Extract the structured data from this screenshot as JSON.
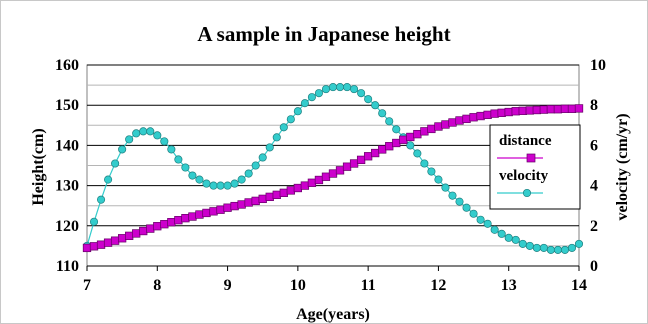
{
  "chart_data": {
    "type": "line",
    "title": "A sample in Japanese height",
    "xlabel": "Age(years)",
    "ylabel": "Height(cm)",
    "y2label": "velocity (cm/yr)",
    "xlim": [
      7,
      14
    ],
    "ylim": [
      110,
      160
    ],
    "y2lim": [
      0,
      10
    ],
    "x_ticks": [
      7,
      8,
      9,
      10,
      11,
      12,
      13,
      14
    ],
    "y_ticks": [
      110,
      120,
      130,
      140,
      150,
      160
    ],
    "y2_ticks": [
      0,
      2,
      4,
      6,
      8,
      10
    ],
    "grid": "horizontal",
    "legend_position": "right",
    "series": [
      {
        "name": "distance",
        "axis": "left",
        "color": "#cc00cc",
        "marker": "square",
        "x": [
          7.0,
          7.1,
          7.2,
          7.3,
          7.4,
          7.5,
          7.6,
          7.7,
          7.8,
          7.9,
          8.0,
          8.1,
          8.2,
          8.3,
          8.4,
          8.5,
          8.6,
          8.7,
          8.8,
          8.9,
          9.0,
          9.1,
          9.2,
          9.3,
          9.4,
          9.5,
          9.6,
          9.7,
          9.8,
          9.9,
          10.0,
          10.1,
          10.2,
          10.3,
          10.4,
          10.5,
          10.6,
          10.7,
          10.8,
          10.9,
          11.0,
          11.1,
          11.2,
          11.3,
          11.4,
          11.5,
          11.6,
          11.7,
          11.8,
          11.9,
          12.0,
          12.1,
          12.2,
          12.3,
          12.4,
          12.5,
          12.6,
          12.7,
          12.8,
          12.9,
          13.0,
          13.1,
          13.2,
          13.3,
          13.4,
          13.5,
          13.6,
          13.7,
          13.8,
          13.9,
          14.0
        ],
        "values": [
          114.5,
          114.9,
          115.3,
          115.8,
          116.3,
          116.9,
          117.5,
          118.1,
          118.7,
          119.3,
          119.9,
          120.4,
          120.9,
          121.4,
          121.9,
          122.3,
          122.8,
          123.2,
          123.6,
          124.0,
          124.5,
          124.9,
          125.3,
          125.8,
          126.2,
          126.7,
          127.2,
          127.7,
          128.2,
          128.8,
          129.4,
          130.0,
          130.7,
          131.4,
          132.2,
          133.0,
          133.8,
          134.7,
          135.5,
          136.4,
          137.3,
          138.1,
          139.0,
          139.8,
          140.6,
          141.4,
          142.1,
          142.8,
          143.5,
          144.1,
          144.7,
          145.2,
          145.7,
          146.2,
          146.6,
          147.0,
          147.3,
          147.6,
          147.9,
          148.1,
          148.3,
          148.5,
          148.6,
          148.7,
          148.8,
          148.9,
          149.0,
          149.0,
          149.1,
          149.1,
          149.2
        ]
      },
      {
        "name": "velocity",
        "axis": "right",
        "color": "#33cccc",
        "marker": "circle",
        "x": [
          7.0,
          7.1,
          7.2,
          7.3,
          7.4,
          7.5,
          7.6,
          7.7,
          7.8,
          7.9,
          8.0,
          8.1,
          8.2,
          8.3,
          8.4,
          8.5,
          8.6,
          8.7,
          8.8,
          8.9,
          9.0,
          9.1,
          9.2,
          9.3,
          9.4,
          9.5,
          9.6,
          9.7,
          9.8,
          9.9,
          10.0,
          10.1,
          10.2,
          10.3,
          10.4,
          10.5,
          10.6,
          10.7,
          10.8,
          10.9,
          11.0,
          11.1,
          11.2,
          11.3,
          11.4,
          11.5,
          11.6,
          11.7,
          11.8,
          11.9,
          12.0,
          12.1,
          12.2,
          12.3,
          12.4,
          12.5,
          12.6,
          12.7,
          12.8,
          12.9,
          13.0,
          13.1,
          13.2,
          13.3,
          13.4,
          13.5,
          13.6,
          13.7,
          13.8,
          13.9,
          14.0
        ],
        "values": [
          1.0,
          2.2,
          3.3,
          4.3,
          5.1,
          5.8,
          6.3,
          6.6,
          6.7,
          6.7,
          6.5,
          6.2,
          5.8,
          5.3,
          4.9,
          4.5,
          4.3,
          4.1,
          4.0,
          4.0,
          4.0,
          4.1,
          4.3,
          4.6,
          5.0,
          5.4,
          5.9,
          6.4,
          6.9,
          7.3,
          7.7,
          8.1,
          8.4,
          8.6,
          8.8,
          8.9,
          8.9,
          8.9,
          8.8,
          8.6,
          8.3,
          8.0,
          7.6,
          7.2,
          6.8,
          6.4,
          6.0,
          5.6,
          5.1,
          4.7,
          4.3,
          3.9,
          3.5,
          3.2,
          2.9,
          2.6,
          2.3,
          2.1,
          1.8,
          1.6,
          1.4,
          1.3,
          1.1,
          1.0,
          0.9,
          0.9,
          0.8,
          0.8,
          0.8,
          0.9,
          1.1
        ]
      }
    ]
  }
}
